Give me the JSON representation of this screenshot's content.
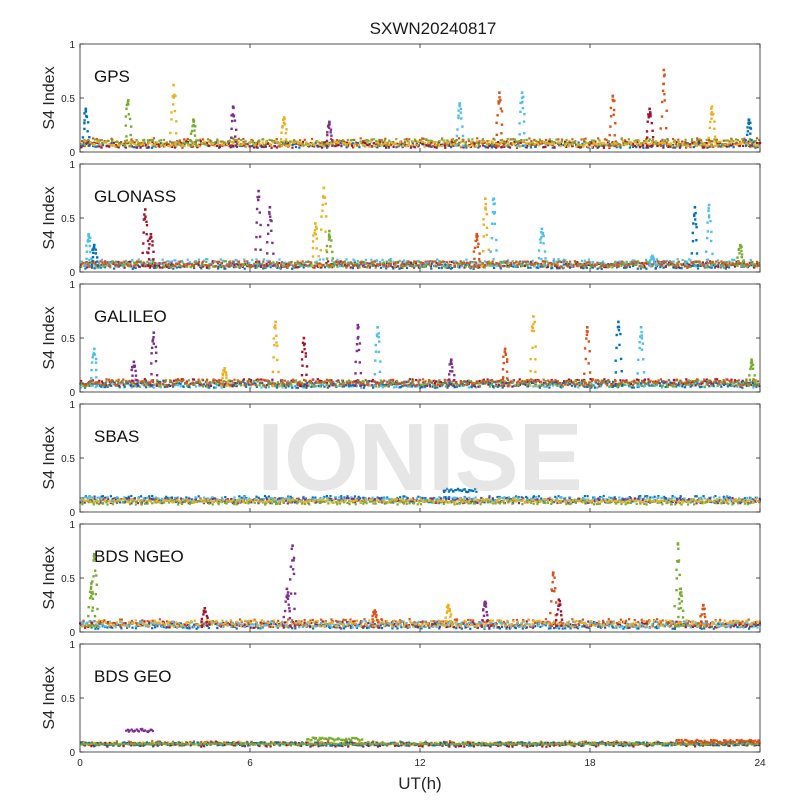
{
  "chart_data": {
    "type": "scatter",
    "title": "SXWN20240817",
    "watermark": "IONISE",
    "xlabel": "UT(h)",
    "xlim": [
      0,
      24
    ],
    "xticks": [
      "0",
      "6",
      "12",
      "18",
      "24"
    ],
    "palette": [
      "#0072BD",
      "#D95319",
      "#EDB120",
      "#7E2F8E",
      "#77AC30",
      "#4DBEEE",
      "#A2142F"
    ],
    "panels": [
      {
        "label": "GPS",
        "ylabel": "S4 Index",
        "ylim": [
          0,
          1
        ],
        "yticks": [
          "0",
          "0.5",
          "1"
        ],
        "spikes": [
          [
            0.2,
            0.4,
            0
          ],
          [
            1.7,
            0.48,
            4
          ],
          [
            3.3,
            0.62,
            2
          ],
          [
            4.0,
            0.3,
            4
          ],
          [
            5.4,
            0.42,
            3
          ],
          [
            7.2,
            0.32,
            2
          ],
          [
            8.8,
            0.28,
            3
          ],
          [
            13.4,
            0.45,
            5
          ],
          [
            14.8,
            0.55,
            1
          ],
          [
            15.6,
            0.55,
            5
          ],
          [
            18.8,
            0.52,
            1
          ],
          [
            20.1,
            0.4,
            6
          ],
          [
            20.6,
            0.76,
            1
          ],
          [
            22.3,
            0.42,
            2
          ],
          [
            23.6,
            0.3,
            0
          ]
        ],
        "baseline": [
          [
            0.04,
            0.09,
            0
          ],
          [
            0.05,
            0.13,
            1
          ],
          [
            0.04,
            0.1,
            6
          ],
          [
            0.06,
            0.12,
            4
          ],
          [
            0.05,
            0.1,
            2
          ]
        ]
      },
      {
        "label": "GLONASS",
        "ylabel": "S4 Index",
        "ylim": [
          0,
          1
        ],
        "yticks": [
          "0",
          "0.5",
          "1"
        ],
        "spikes": [
          [
            0.3,
            0.35,
            5
          ],
          [
            0.5,
            0.25,
            0
          ],
          [
            2.3,
            0.58,
            6
          ],
          [
            2.5,
            0.35,
            6
          ],
          [
            6.3,
            0.75,
            3
          ],
          [
            6.7,
            0.6,
            3
          ],
          [
            8.6,
            0.78,
            2
          ],
          [
            8.3,
            0.45,
            2
          ],
          [
            8.8,
            0.38,
            4
          ],
          [
            14.3,
            0.68,
            2
          ],
          [
            14.6,
            0.68,
            5
          ],
          [
            14.0,
            0.35,
            1
          ],
          [
            16.3,
            0.4,
            5
          ],
          [
            21.7,
            0.6,
            0
          ],
          [
            22.2,
            0.62,
            5
          ],
          [
            23.3,
            0.25,
            4
          ],
          [
            20.2,
            0.15,
            5
          ]
        ],
        "baseline": [
          [
            0.03,
            0.08,
            0
          ],
          [
            0.04,
            0.1,
            6
          ],
          [
            0.05,
            0.12,
            5
          ],
          [
            0.04,
            0.1,
            4
          ],
          [
            0.05,
            0.1,
            1
          ]
        ]
      },
      {
        "label": "GALILEO",
        "ylabel": "S4 Index",
        "ylim": [
          0,
          1
        ],
        "yticks": [
          "0",
          "0.5",
          "1"
        ],
        "spikes": [
          [
            0.5,
            0.4,
            5
          ],
          [
            1.9,
            0.28,
            3
          ],
          [
            2.6,
            0.55,
            3
          ],
          [
            5.1,
            0.22,
            2
          ],
          [
            6.9,
            0.65,
            2
          ],
          [
            7.9,
            0.5,
            6
          ],
          [
            9.8,
            0.62,
            3
          ],
          [
            10.5,
            0.6,
            5
          ],
          [
            13.1,
            0.3,
            3
          ],
          [
            15.0,
            0.4,
            1
          ],
          [
            16.0,
            0.7,
            2
          ],
          [
            17.9,
            0.6,
            1
          ],
          [
            19.0,
            0.65,
            0
          ],
          [
            19.8,
            0.6,
            5
          ],
          [
            23.7,
            0.3,
            4
          ]
        ],
        "baseline": [
          [
            0.04,
            0.1,
            5
          ],
          [
            0.05,
            0.12,
            6
          ],
          [
            0.04,
            0.1,
            0
          ],
          [
            0.05,
            0.11,
            4
          ],
          [
            0.06,
            0.12,
            1
          ]
        ]
      },
      {
        "label": "SBAS",
        "ylabel": "S4 Index",
        "ylim": [
          0,
          1
        ],
        "yticks": [
          "0",
          "0.5",
          "1"
        ],
        "spikes": [],
        "baseline": [
          [
            0.09,
            0.15,
            0
          ],
          [
            0.1,
            0.14,
            5
          ],
          [
            0.08,
            0.13,
            3
          ],
          [
            0.07,
            0.11,
            4
          ],
          [
            0.09,
            0.12,
            2
          ]
        ],
        "bumps": [
          [
            12.8,
            14.0,
            0.2,
            0
          ]
        ]
      },
      {
        "label": "BDS NGEO",
        "ylabel": "S4 Index",
        "ylim": [
          0,
          1
        ],
        "yticks": [
          "0",
          "0.5",
          "1"
        ],
        "spikes": [
          [
            0.4,
            0.45,
            4
          ],
          [
            0.5,
            0.72,
            4
          ],
          [
            4.4,
            0.22,
            6
          ],
          [
            7.5,
            0.8,
            3
          ],
          [
            7.3,
            0.4,
            3
          ],
          [
            10.4,
            0.2,
            1
          ],
          [
            13.0,
            0.25,
            2
          ],
          [
            14.3,
            0.28,
            3
          ],
          [
            16.7,
            0.55,
            1
          ],
          [
            16.9,
            0.3,
            6
          ],
          [
            21.1,
            0.82,
            4
          ],
          [
            21.2,
            0.4,
            4
          ],
          [
            22.0,
            0.25,
            1
          ]
        ],
        "baseline": [
          [
            0.03,
            0.08,
            0
          ],
          [
            0.04,
            0.1,
            6
          ],
          [
            0.05,
            0.12,
            1
          ],
          [
            0.04,
            0.1,
            5
          ],
          [
            0.05,
            0.11,
            2
          ]
        ]
      },
      {
        "label": "BDS GEO",
        "ylabel": "S4 Index",
        "ylim": [
          0,
          1
        ],
        "yticks": [
          "0",
          "0.5",
          "1"
        ],
        "spikes": [],
        "baseline": [
          [
            0.06,
            0.1,
            1
          ],
          [
            0.07,
            0.09,
            2
          ],
          [
            0.05,
            0.09,
            6
          ],
          [
            0.06,
            0.09,
            0
          ],
          [
            0.07,
            0.08,
            4
          ]
        ],
        "bumps": [
          [
            1.6,
            2.6,
            0.2,
            3
          ],
          [
            8.0,
            10.0,
            0.12,
            4
          ],
          [
            21.0,
            24.0,
            0.1,
            1
          ]
        ]
      }
    ]
  }
}
